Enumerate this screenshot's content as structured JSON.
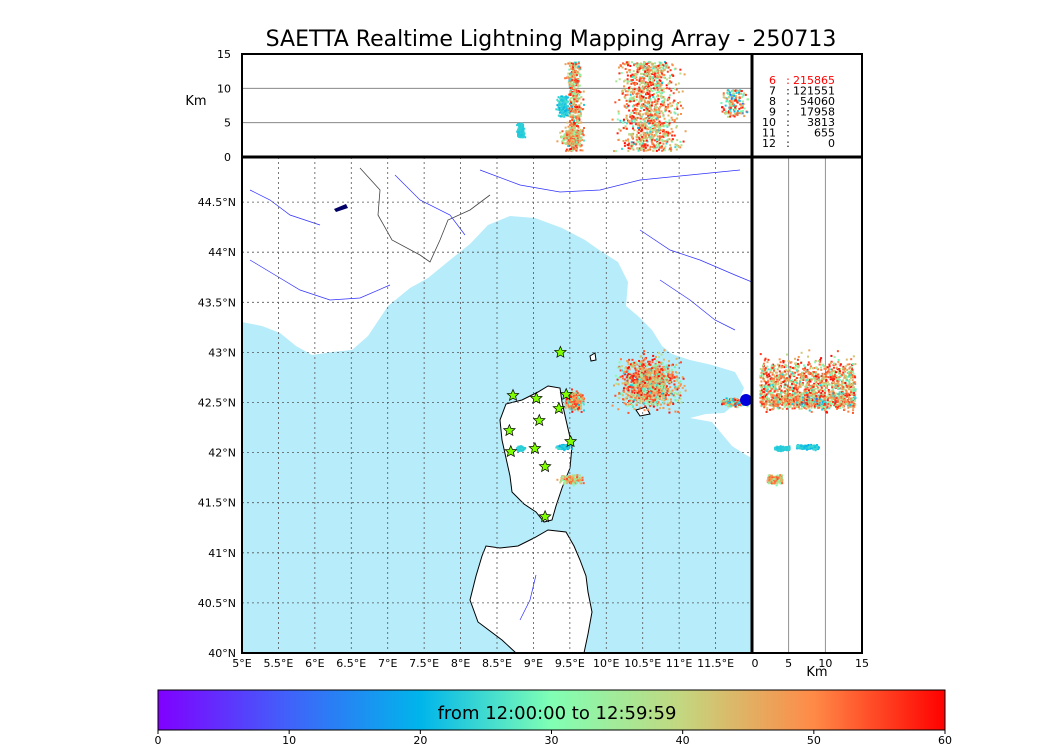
{
  "chart_data": {
    "type": "scatter",
    "title": "SAETTA Realtime Lightning Mapping Array - 250713",
    "top_panel": {
      "ylabel": "Km",
      "y_ticks": [
        "15",
        "10",
        "5",
        "0"
      ],
      "ylim": [
        0,
        15
      ],
      "gridlines_km": [
        5,
        10
      ]
    },
    "map_panel": {
      "lon_ticks": [
        "5°E",
        "5.5°E",
        "6°E",
        "6.5°E",
        "7°E",
        "7.5°E",
        "8°E",
        "8.5°E",
        "9°E",
        "9.5°E",
        "10°E",
        "10.5°E",
        "11°E",
        "11.5°E"
      ],
      "lat_ticks": [
        "44.5°N",
        "44°N",
        "43.5°N",
        "43°N",
        "42.5°N",
        "42°N",
        "41.5°N",
        "41°N",
        "40.5°N",
        "40°N"
      ],
      "lon_range": [
        5,
        12
      ],
      "lat_range": [
        40,
        44.95
      ],
      "grid": true,
      "sea_color": "#b7ecfa",
      "station_color": "#7fff00",
      "stations": [
        [
          9.37,
          43.0
        ],
        [
          8.72,
          42.57
        ],
        [
          9.04,
          42.54
        ],
        [
          9.45,
          42.58
        ],
        [
          9.35,
          42.44
        ],
        [
          9.08,
          42.32
        ],
        [
          8.67,
          42.22
        ],
        [
          9.51,
          42.11
        ],
        [
          9.02,
          42.04
        ],
        [
          8.69,
          42.01
        ],
        [
          9.16,
          41.86
        ],
        [
          9.16,
          41.36
        ]
      ]
    },
    "side_panel": {
      "xlabel": "Km",
      "x_ticks": [
        "0",
        "5",
        "10",
        "15"
      ],
      "xlim": [
        0,
        15
      ],
      "gridlines_km": [
        5,
        10
      ]
    },
    "station_counts": {
      "rows": [
        {
          "stations": "6",
          "count": "215865",
          "highlight": true
        },
        {
          "stations": "7",
          "count": "121551",
          "highlight": false
        },
        {
          "stations": "8",
          "count": "54060",
          "highlight": false
        },
        {
          "stations": "9",
          "count": "17958",
          "highlight": false
        },
        {
          "stations": "10",
          "count": "3813",
          "highlight": false
        },
        {
          "stations": "11",
          "count": "655",
          "highlight": false
        },
        {
          "stations": "12",
          "count": "0",
          "highlight": false
        }
      ],
      "highlight_color": "#ff0000"
    },
    "colorbar": {
      "label": "from 12:00:00 to 12:59:59",
      "ticks": [
        "0",
        "10",
        "20",
        "30",
        "40",
        "50",
        "60"
      ],
      "range": [
        0,
        60
      ],
      "colormap": "rainbow"
    },
    "clusters": [
      {
        "lon_range": [
          10.0,
          11.15
        ],
        "lat_range": [
          42.35,
          43.05
        ],
        "alt_range_km": [
          1,
          14
        ],
        "time_range_min": [
          20,
          60
        ]
      },
      {
        "lon_range": [
          9.4,
          9.7
        ],
        "lat_range": [
          42.4,
          42.65
        ],
        "alt_range_km": [
          1,
          14
        ],
        "time_range_min": [
          20,
          60
        ]
      },
      {
        "lon_range": [
          9.3,
          9.7
        ],
        "lat_range": [
          41.68,
          41.8
        ],
        "alt_range_km": [
          2,
          4
        ],
        "time_range_min": [
          28,
          55
        ]
      },
      {
        "lon_range": [
          9.28,
          9.52
        ],
        "lat_range": [
          42.03,
          42.1
        ],
        "alt_range_km": [
          6,
          9
        ],
        "time_range_min": [
          18,
          26
        ]
      },
      {
        "lon_range": [
          11.5,
          12.0
        ],
        "lat_range": [
          42.45,
          42.57
        ],
        "alt_range_km": [
          6,
          10
        ],
        "time_range_min": [
          5,
          60
        ]
      },
      {
        "lon_range": [
          8.75,
          8.88
        ],
        "lat_range": [
          42.02,
          42.08
        ],
        "alt_range_km": [
          3,
          5
        ],
        "time_range_min": [
          22,
          24
        ]
      }
    ]
  }
}
